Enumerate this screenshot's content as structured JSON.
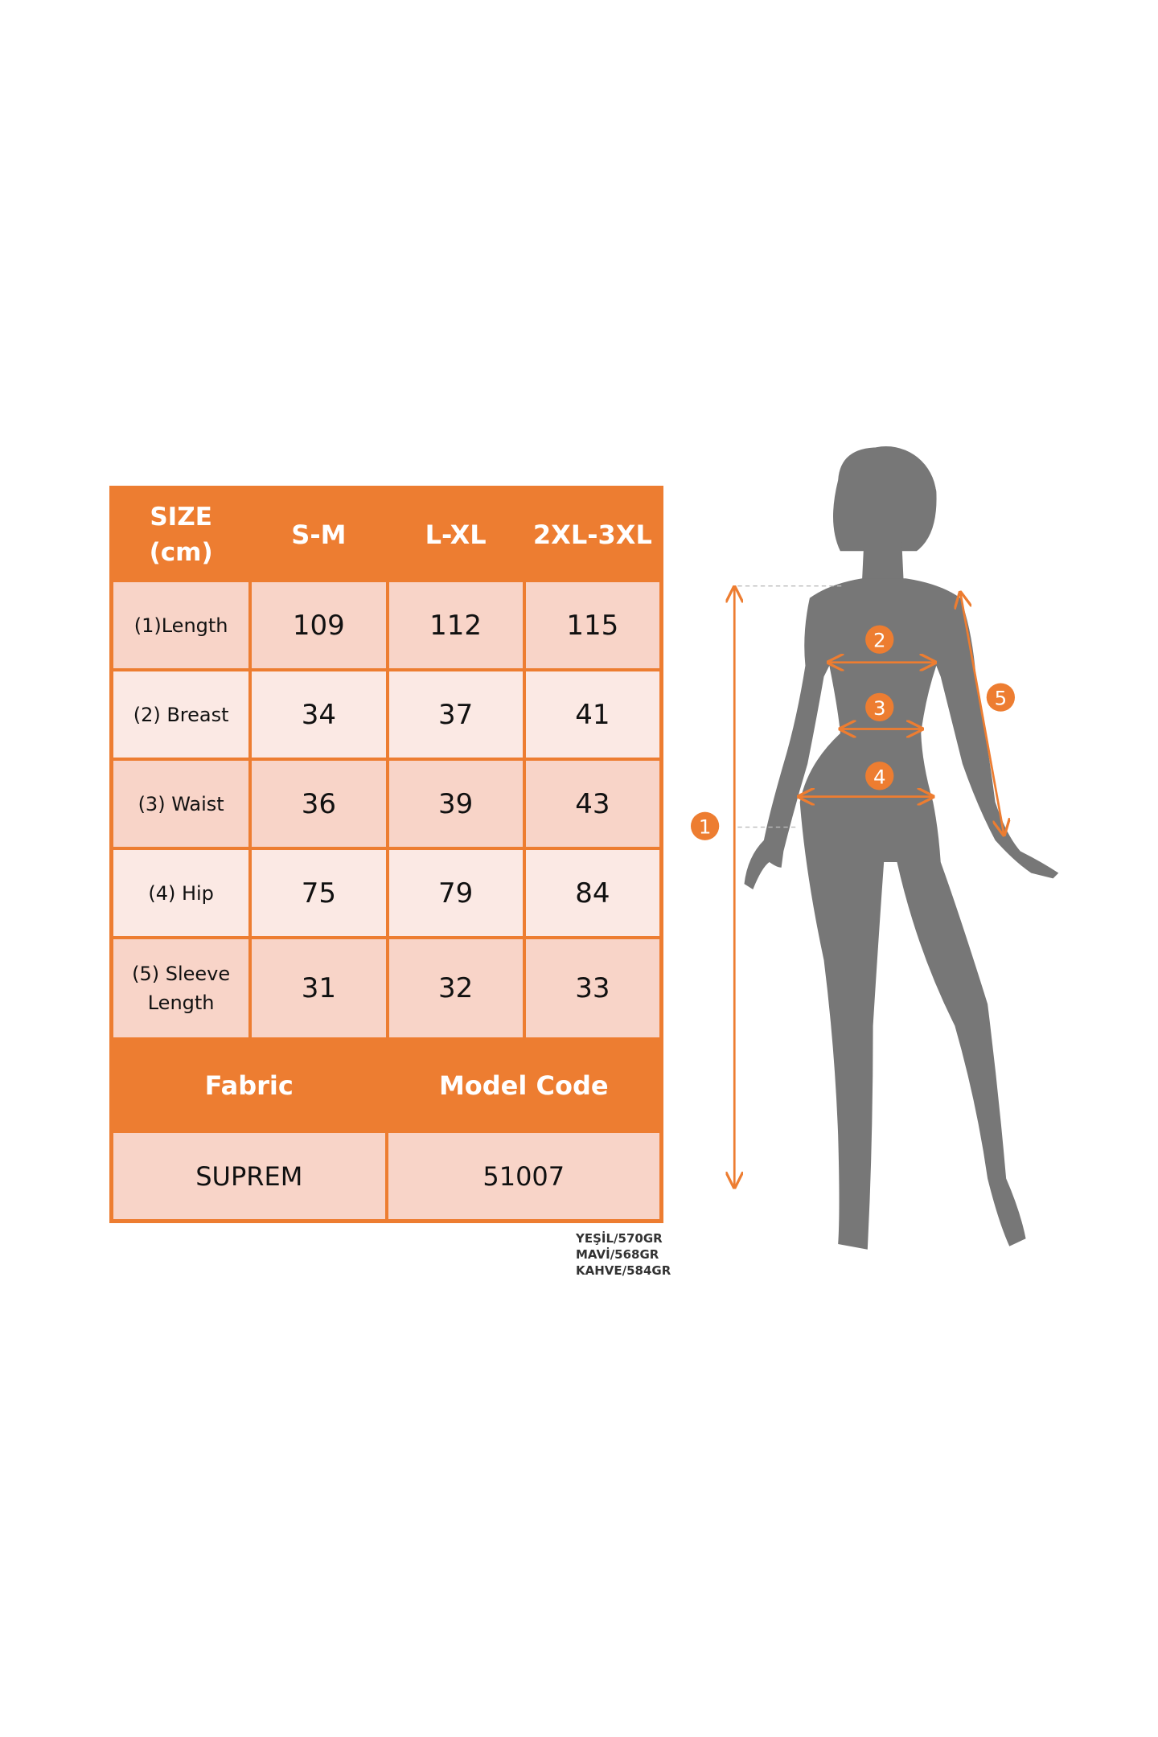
{
  "header": {
    "size_label_line1": "SIZE",
    "size_label_line2": "(cm)",
    "sizes": [
      "S-M",
      "L-XL",
      "2XL-3XL"
    ]
  },
  "rows": [
    {
      "label": "(1)Length",
      "values": [
        "109",
        "112",
        "115"
      ]
    },
    {
      "label": "(2) Breast",
      "values": [
        "34",
        "37",
        "41"
      ]
    },
    {
      "label": "(3) Waist",
      "values": [
        "36",
        "39",
        "43"
      ]
    },
    {
      "label": "(4) Hip",
      "values": [
        "75",
        "79",
        "84"
      ]
    },
    {
      "label_line1": "(5) Sleeve",
      "label_line2": "Length",
      "values": [
        "31",
        "32",
        "33"
      ]
    }
  ],
  "footer": {
    "fabric_label": "Fabric",
    "model_code_label": "Model Code",
    "fabric_value": "SUPREM",
    "model_code_value": "51007"
  },
  "notes": [
    "YEŞİL/570GR",
    "MAVİ/568GR",
    "KAHVE/584GR"
  ],
  "figure": {
    "markers": [
      "1",
      "2",
      "3",
      "4",
      "5"
    ]
  },
  "colors": {
    "accent": "#ed7d31",
    "cell_dark": "#f8d4c8",
    "cell_light": "#fbe9e4",
    "silhouette": "#777777"
  }
}
